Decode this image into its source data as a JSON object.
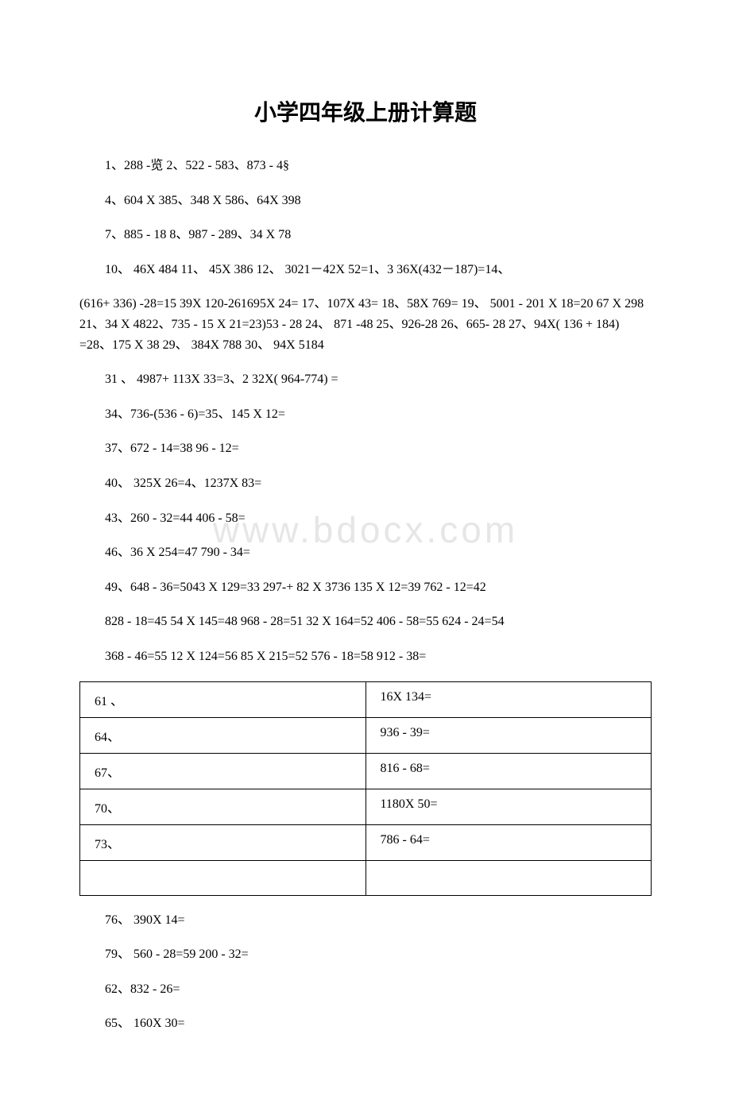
{
  "title": "小学四年级上册计算题",
  "watermark": "www.bdocx.com",
  "paragraphs": [
    "1、288 -览 2、522 - 583、873 - 4§",
    "4、604 X 385、348 X 586、64X 398",
    "7、885 - 18 8、987 - 289、34 X 78",
    "10、 46X 484 11、 45X 386 12、 3021－42X 52=1、3 36X(432－187)=14、",
    "(616+ 336) -28=15 39X 120-261695X 24= 17、107X 43= 18、58X 769= 19、 5001 - 201 X 18=20 67 X 298 21、34 X 4822、735 - 15 X 21=23)53 - 28 24、 871 -48 25、926-28 26、665- 28 27、94X( 136 + 184) =28、175 X 38 29、 384X 788 30、 94X 5184",
    "31 、 4987+ 113X 33=3、2 32X( 964-774) =",
    "34、736-(536 - 6)=35、145 X 12=",
    "37、672 - 14=38 96 - 12=",
    "40、 325X 26=4、1237X 83=",
    "43、260 - 32=44 406 - 58=",
    "46、36 X 254=47 790 - 34=",
    "49、648 - 36=5043 X 129=33 297-+ 82 X 3736 135 X 12=39 762 - 12=42",
    "828 - 18=45 54 X 145=48 968 - 28=51 32 X 164=52 406 - 58=55 624 - 24=54",
    "368 - 46=55 12 X 124=56 85 X 215=52 576 - 18=58 912 - 38="
  ],
  "table": {
    "rows": [
      [
        "61 、",
        "16X 134="
      ],
      [
        "64、",
        "936 - 39="
      ],
      [
        "67、",
        "816 - 68="
      ],
      [
        "70、",
        "1180X 50="
      ],
      [
        "73、",
        "786 - 64="
      ],
      [
        "",
        ""
      ]
    ]
  },
  "after_table": [
    "76、 390X 14=",
    "79、 560 - 28=59 200 - 32=",
    "62、832 - 26=",
    "65、 160X 30="
  ],
  "colors": {
    "text": "#000000",
    "background": "#ffffff",
    "watermark": "#e6e6e6",
    "border": "#000000"
  },
  "font_sizes": {
    "title": 28,
    "body": 16,
    "watermark": 46
  }
}
